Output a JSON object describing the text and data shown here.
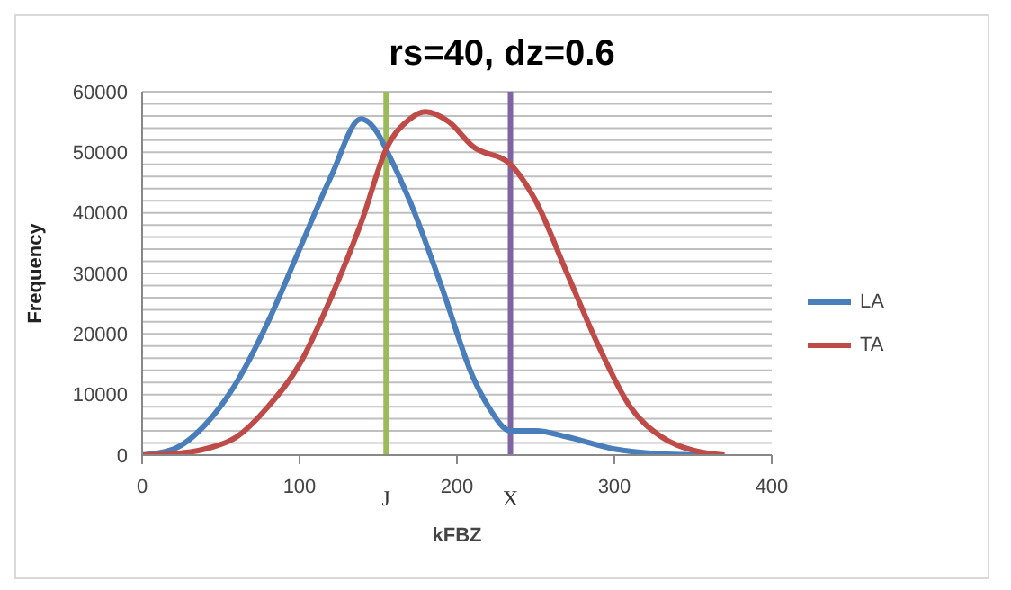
{
  "chart_data": {
    "type": "line",
    "title": "rs=40, dz=0.6",
    "xlabel": "kFBZ",
    "ylabel": "Frequency",
    "xlim": [
      0,
      400
    ],
    "xticks": [
      0,
      100,
      200,
      300,
      400
    ],
    "ylim": [
      0,
      60000
    ],
    "yticks": [
      0,
      {
        "value": 2000,
        "label": null
      },
      {
        "value": 4000,
        "label": null
      },
      {
        "value": 6000,
        "label": null
      },
      {
        "value": 8000,
        "label": null
      },
      10000,
      {
        "value": 12000,
        "label": null
      },
      {
        "value": 14000,
        "label": null
      },
      {
        "value": 16000,
        "label": null
      },
      {
        "value": 18000,
        "label": null
      },
      20000,
      {
        "value": 22000,
        "label": null
      },
      {
        "value": 24000,
        "label": null
      },
      {
        "value": 26000,
        "label": null
      },
      {
        "value": 28000,
        "label": null
      },
      30000,
      {
        "value": 32000,
        "label": null
      },
      {
        "value": 34000,
        "label": null
      },
      {
        "value": 36000,
        "label": null
      },
      {
        "value": 38000,
        "label": null
      },
      40000,
      {
        "value": 42000,
        "label": null
      },
      {
        "value": 44000,
        "label": null
      },
      {
        "value": 46000,
        "label": null
      },
      {
        "value": 48000,
        "label": null
      },
      50000,
      {
        "value": 52000,
        "label": null
      },
      {
        "value": 54000,
        "label": null
      },
      {
        "value": 56000,
        "label": null
      },
      {
        "value": 58000,
        "label": null
      },
      60000
    ],
    "grid": "y",
    "legend": "right",
    "marker": "none",
    "line_style": "solid",
    "series": [
      {
        "name": "LA",
        "color": "#4a7ebb",
        "x": [
          0,
          20,
          40,
          60,
          80,
          100,
          120,
          139,
          150,
          155,
          170,
          190,
          210,
          220,
          234,
          250,
          270,
          300,
          330,
          360
        ],
        "values": [
          0,
          1000,
          5000,
          12000,
          22000,
          34000,
          46000,
          55500,
          53000,
          50500,
          42000,
          28000,
          13000,
          8000,
          4000,
          4000,
          3000,
          1000,
          200,
          0
        ]
      },
      {
        "name": "TA",
        "color": "#be4b48",
        "x": [
          0,
          20,
          40,
          60,
          80,
          100,
          120,
          140,
          155,
          170,
          180,
          195,
          210,
          234,
          250,
          270,
          290,
          310,
          330,
          350,
          370
        ],
        "values": [
          0,
          200,
          1000,
          3000,
          8000,
          15000,
          26000,
          39000,
          50500,
          55500,
          56700,
          55000,
          51000,
          48000,
          42000,
          30000,
          18000,
          8000,
          3000,
          800,
          0
        ]
      }
    ],
    "ref_lines": [
      {
        "axis": "x",
        "value": 155,
        "label": "J",
        "color": "#9bbb59"
      },
      {
        "axis": "x",
        "value": 234,
        "label": "X",
        "color": "#8064a2"
      }
    ]
  }
}
